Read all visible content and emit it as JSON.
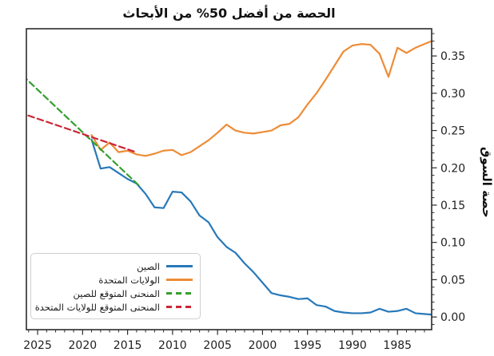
{
  "title": "الحصة من أفضل 50% من الأبحاث",
  "chart_data": {
    "type": "line",
    "title": "الحصة من أفضل 50% من الأبحاث",
    "ylabel": "حصة السوق",
    "xlabel": "",
    "grid": false,
    "legend_position": "lower-left",
    "x_axis": {
      "reversed": true,
      "range": [
        2026.25,
        1981.2
      ],
      "ticks": [
        2025,
        2020,
        2015,
        2010,
        2005,
        2000,
        1995,
        1990,
        1985
      ],
      "tick_labels": [
        "2025",
        "2020",
        "2015",
        "2010",
        "2005",
        "2000",
        "1995",
        "1990",
        "1985"
      ],
      "minor_tick_step_years": 1
    },
    "y_axis": {
      "side": "right",
      "range": [
        -0.017,
        0.3865
      ],
      "ticks": [
        0.0,
        0.05,
        0.1,
        0.15,
        0.2,
        0.25,
        0.3,
        0.35
      ],
      "tick_labels": [
        "0.00",
        "0.05",
        "0.10",
        "0.15",
        "0.20",
        "0.25",
        "0.30",
        "0.35"
      ],
      "minor_tick_step": 0.01
    },
    "series": [
      {
        "name": "الصين",
        "color": "#2879b9",
        "style": "solid",
        "x": [
          1981,
          1982,
          1983,
          1984,
          1985,
          1986,
          1987,
          1988,
          1989,
          1990,
          1991,
          1992,
          1993,
          1994,
          1995,
          1996,
          1997,
          1998,
          1999,
          2000,
          2001,
          2002,
          2003,
          2004,
          2005,
          2006,
          2007,
          2008,
          2009,
          2010,
          2011,
          2012,
          2013,
          2014,
          2015,
          2016,
          2017,
          2018,
          2019
        ],
        "y": [
          0.003,
          0.004,
          0.005,
          0.011,
          0.008,
          0.007,
          0.011,
          0.006,
          0.005,
          0.005,
          0.006,
          0.008,
          0.014,
          0.016,
          0.025,
          0.024,
          0.027,
          0.029,
          0.032,
          0.046,
          0.06,
          0.072,
          0.086,
          0.094,
          0.107,
          0.127,
          0.136,
          0.155,
          0.167,
          0.168,
          0.146,
          0.147,
          0.165,
          0.179,
          0.185,
          0.193,
          0.201,
          0.199,
          0.238
        ]
      },
      {
        "name": "الولايات المتحدة",
        "color": "#ee8c36",
        "style": "solid",
        "x": [
          1981,
          1982,
          1983,
          1984,
          1985,
          1986,
          1987,
          1988,
          1989,
          1990,
          1991,
          1992,
          1993,
          1994,
          1995,
          1996,
          1997,
          1998,
          1999,
          2000,
          2001,
          2002,
          2003,
          2004,
          2005,
          2006,
          2007,
          2008,
          2009,
          2010,
          2011,
          2012,
          2013,
          2014,
          2015,
          2016,
          2017,
          2018,
          2019
        ],
        "y": [
          0.371,
          0.366,
          0.361,
          0.354,
          0.361,
          0.322,
          0.353,
          0.365,
          0.366,
          0.364,
          0.356,
          0.337,
          0.318,
          0.3,
          0.285,
          0.268,
          0.259,
          0.257,
          0.25,
          0.248,
          0.246,
          0.247,
          0.25,
          0.258,
          0.247,
          0.237,
          0.229,
          0.221,
          0.217,
          0.224,
          0.223,
          0.219,
          0.216,
          0.218,
          0.223,
          0.221,
          0.234,
          0.224,
          0.244
        ]
      },
      {
        "name": "المنحنى المتوقع للصين",
        "color": "#33a02c",
        "style": "dashed",
        "x": [
          2013.8,
          2026.25
        ],
        "y": [
          0.177,
          0.319
        ]
      },
      {
        "name": "المنحنى المتوقع للولايات المتحدة",
        "color": "#cb2636",
        "style": "dashed",
        "x": [
          2014.3,
          2026.25
        ],
        "y": [
          0.222,
          0.271
        ]
      }
    ]
  }
}
